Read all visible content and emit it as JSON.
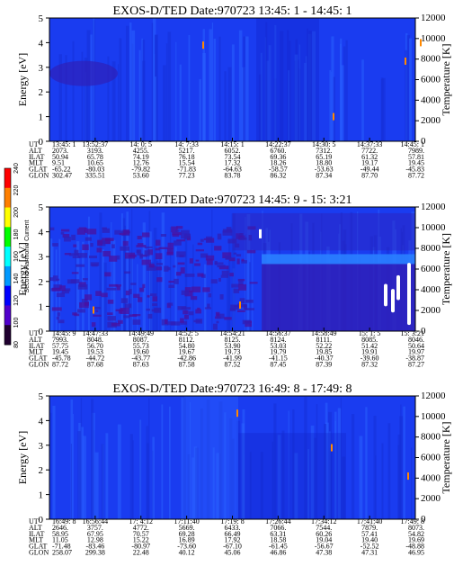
{
  "chart_data": [
    {
      "type": "heatmap",
      "title": "EXOS-D/TED   Date:970723  13:45: 1 - 14:45: 1",
      "ylabel": "Energy [eV]",
      "y2label": "Temperature [K]",
      "ylim": [
        0,
        5
      ],
      "y2lim": [
        0,
        12000
      ],
      "yticks": [
        0,
        1,
        2,
        3,
        4,
        5
      ],
      "y2ticks": [
        0,
        2000,
        4000,
        6000,
        8000,
        10000,
        12000
      ],
      "rows": [
        "UT",
        "ALT",
        "ILAT",
        "MLT",
        "GLAT",
        "GLON"
      ],
      "columns": [
        [
          "13:45: 1",
          "2073.",
          "50.94",
          "9.51",
          "-65.22",
          "302.47"
        ],
        [
          "13:52:37",
          "3193.",
          "65.78",
          "10.65",
          "-80.03",
          "335.51"
        ],
        [
          "14: 0: 5",
          "4255.",
          "74.19",
          "12.76",
          "-79.82",
          "53.60"
        ],
        [
          "14: 7:33",
          "5217.",
          "76.18",
          "15.54",
          "-71.83",
          "77.23"
        ],
        [
          "14:15: 1",
          "6052.",
          "73.54",
          "17.32",
          "-64.63",
          "83.78"
        ],
        [
          "14:22:37",
          "6760.",
          "69.36",
          "18.26",
          "-58.57",
          "86.32"
        ],
        [
          "14:30: 5",
          "7312.",
          "65.19",
          "18.80",
          "-53.63",
          "87.34"
        ],
        [
          "14:37:33",
          "7722.",
          "61.32",
          "19.17",
          "-49.44",
          "87.70"
        ],
        [
          "14:45: 1",
          "7989.",
          "57.81",
          "19.45",
          "-45.83",
          "87.72"
        ]
      ]
    },
    {
      "type": "heatmap",
      "title": "EXOS-D/TED   Date:970723  14:45: 9 - 15: 3:21",
      "ylabel": "Energy [eV]",
      "y2label": "Temperature [K]",
      "ylim": [
        0,
        5
      ],
      "y2lim": [
        0,
        12000
      ],
      "yticks": [
        0,
        1,
        2,
        3,
        4,
        5
      ],
      "y2ticks": [
        0,
        2000,
        4000,
        6000,
        8000,
        10000,
        12000
      ],
      "rows": [
        "UT",
        "ALT",
        "ILAT",
        "MLT",
        "GLAT",
        "GLON"
      ],
      "columns": [
        [
          "14:45: 9",
          "7993.",
          "57.75",
          "19.45",
          "-45.78",
          "87.72"
        ],
        [
          "14:47:33",
          "8048.",
          "56.70",
          "19.53",
          "-44.72",
          "87.68"
        ],
        [
          "14:49:49",
          "8087.",
          "55.73",
          "19.60",
          "-43.77",
          "87.63"
        ],
        [
          "14:52: 5",
          "8112.",
          "54.80",
          "19.67",
          "-42.86",
          "87.58"
        ],
        [
          "14:54:21",
          "8125.",
          "53.90",
          "19.73",
          "-41.99",
          "87.52"
        ],
        [
          "14:56:37",
          "8124.",
          "53.03",
          "19.79",
          "-41.15",
          "87.45"
        ],
        [
          "14:58:49",
          "8111.",
          "52.22",
          "19.85",
          "-40.37",
          "87.39"
        ],
        [
          "15: 1: 5",
          "8085.",
          "51.42",
          "19.91",
          "-39.60",
          "87.32"
        ],
        [
          "15: 3:21",
          "8046.",
          "50.64",
          "19.97",
          "-38.87",
          "87.27"
        ]
      ]
    },
    {
      "type": "heatmap",
      "title": "EXOS-D/TED   Date:970723  16:49: 8 - 17:49: 8",
      "ylabel": "Energy [eV]",
      "y2label": "Temperature [K]",
      "ylim": [
        0,
        5
      ],
      "y2lim": [
        0,
        12000
      ],
      "yticks": [
        0,
        1,
        2,
        3,
        4,
        5
      ],
      "y2ticks": [
        0,
        2000,
        4000,
        6000,
        8000,
        10000,
        12000
      ],
      "rows": [
        "UT",
        "ALT",
        "ILAT",
        "MLT",
        "GLAT",
        "GLON"
      ],
      "columns": [
        [
          "16:49: 8",
          "2646.",
          "58.95",
          "11.05",
          "-71.48",
          "258.07"
        ],
        [
          "16:56:44",
          "3757.",
          "67.95",
          "12.98",
          "-83.46",
          "299.38"
        ],
        [
          "17: 4:12",
          "4772.",
          "70.57",
          "15.22",
          "-80.97",
          "22.48"
        ],
        [
          "17:11:40",
          "5669.",
          "69.28",
          "16.89",
          "-73.60",
          "40.12"
        ],
        [
          "17:19: 8",
          "6433.",
          "66.49",
          "17.92",
          "-67.10",
          "45.06"
        ],
        [
          "17:26:44",
          "7066.",
          "63.31",
          "18.58",
          "-61.45",
          "46.86"
        ],
        [
          "17:34:12",
          "7544.",
          "60.26",
          "19.04",
          "-56.67",
          "47.38"
        ],
        [
          "17:41:40",
          "7879.",
          "57.41",
          "19.40",
          "-52.52",
          "47.31"
        ],
        [
          "17:49: 8",
          "8073.",
          "54.82",
          "19.69",
          "-48.88",
          "46.95"
        ]
      ]
    }
  ],
  "colorbar": {
    "label": "Second Harmonic Current",
    "ticks": [
      "240",
      "220",
      "200",
      "180",
      "160",
      "140",
      "120",
      "100",
      "80"
    ],
    "colors": [
      "#ff0000",
      "#ff8000",
      "#ffff00",
      "#00ff00",
      "#00ffff",
      "#0099ff",
      "#0000ff",
      "#5000cc",
      "#200030"
    ]
  },
  "colors": {
    "background": "#1a3cf0",
    "mid": "#2a60ff",
    "dark": "#2f1fb8",
    "purple": "#4a10a0"
  }
}
